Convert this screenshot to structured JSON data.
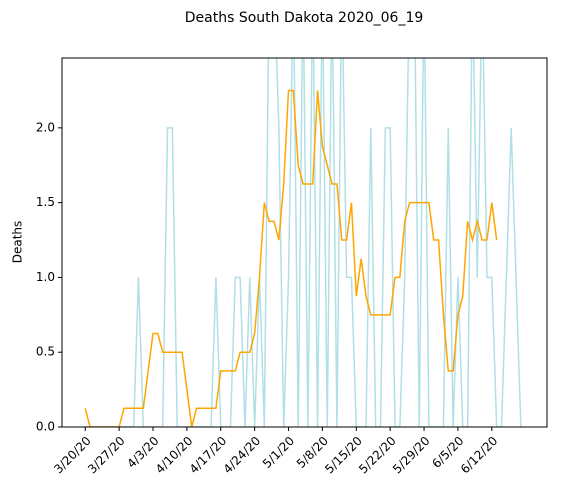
{
  "chart_data": {
    "type": "line",
    "title": "Deaths South Dakota 2020_06_19",
    "ylabel": "Deaths",
    "categories": [
      "3/20/20",
      null,
      null,
      null,
      null,
      null,
      null,
      "3/27/20",
      null,
      null,
      null,
      null,
      null,
      null,
      "4/3/20",
      null,
      null,
      null,
      null,
      null,
      null,
      "4/10/20",
      null,
      null,
      null,
      null,
      null,
      null,
      "4/17/20",
      null,
      null,
      null,
      null,
      null,
      null,
      "4/24/20",
      null,
      null,
      null,
      null,
      null,
      null,
      "5/1/20",
      null,
      null,
      null,
      null,
      null,
      null,
      "5/8/20",
      null,
      null,
      null,
      null,
      null,
      null,
      "5/15/20",
      null,
      null,
      null,
      null,
      null,
      null,
      "5/22/20",
      null,
      null,
      null,
      null,
      null,
      null,
      "5/29/20",
      null,
      null,
      null,
      null,
      null,
      null,
      "6/5/20",
      null,
      null,
      null,
      null,
      null,
      null,
      "6/12/20",
      null,
      null,
      null,
      null,
      null,
      null
    ],
    "series": [
      {
        "color": "#b0e0e6",
        "values": [
          0,
          0,
          0,
          0,
          0,
          0,
          0,
          0,
          0,
          0,
          0,
          1,
          0,
          0,
          0,
          0,
          0,
          2,
          2,
          0,
          0,
          0,
          0,
          0,
          0,
          0,
          0,
          1,
          0,
          0,
          0,
          1,
          1,
          0,
          1,
          0,
          1,
          0,
          3,
          3,
          2,
          0,
          1,
          3,
          0,
          3,
          0,
          3,
          0,
          3,
          0,
          3,
          0,
          3,
          1,
          1,
          0,
          0,
          0,
          2,
          0,
          0,
          2,
          2,
          0,
          0,
          1,
          3,
          3,
          0,
          3,
          0,
          0,
          0,
          0,
          2,
          0,
          1,
          0,
          0,
          3,
          1,
          3,
          1,
          1,
          0,
          0,
          1,
          2,
          1,
          0
        ]
      },
      {
        "color": "#ffa500",
        "values": [
          0.125,
          0,
          0,
          0,
          0,
          0,
          0,
          0,
          0.125,
          0.125,
          0.125,
          0.125,
          0.125,
          0.375,
          0.625,
          0.625,
          0.5,
          0.5,
          0.5,
          0.5,
          0.5,
          0.25,
          0,
          0.125,
          0.125,
          0.125,
          0.125,
          0.125,
          0.375,
          0.375,
          0.375,
          0.375,
          0.5,
          0.5,
          0.5,
          0.625,
          1.0,
          1.5,
          1.375,
          1.375,
          1.25,
          1.625,
          2.25,
          2.25,
          1.75,
          1.625,
          1.625,
          1.625,
          2.25,
          1.875,
          1.75,
          1.625,
          1.625,
          1.25,
          1.25,
          1.5,
          0.875,
          1.125,
          0.875,
          0.75,
          0.75,
          0.75,
          0.75,
          0.75,
          1.0,
          1.0,
          1.375,
          1.5,
          1.5,
          1.5,
          1.5,
          1.5,
          1.25,
          1.25,
          0.75,
          0.375,
          0.375,
          0.75,
          0.875,
          1.375,
          1.25,
          1.375,
          1.25,
          1.25,
          1.5,
          1.25,
          null,
          null,
          null,
          null,
          null
        ]
      }
    ],
    "ylim": [
      0,
      2.467
    ],
    "yticks": [
      {
        "value": 0,
        "label": "0.0"
      },
      {
        "value": 0.5,
        "label": "0.5"
      },
      {
        "value": 1,
        "label": "1.0"
      },
      {
        "value": 1.5,
        "label": "1.5"
      },
      {
        "value": 2,
        "label": "2.0"
      }
    ]
  }
}
